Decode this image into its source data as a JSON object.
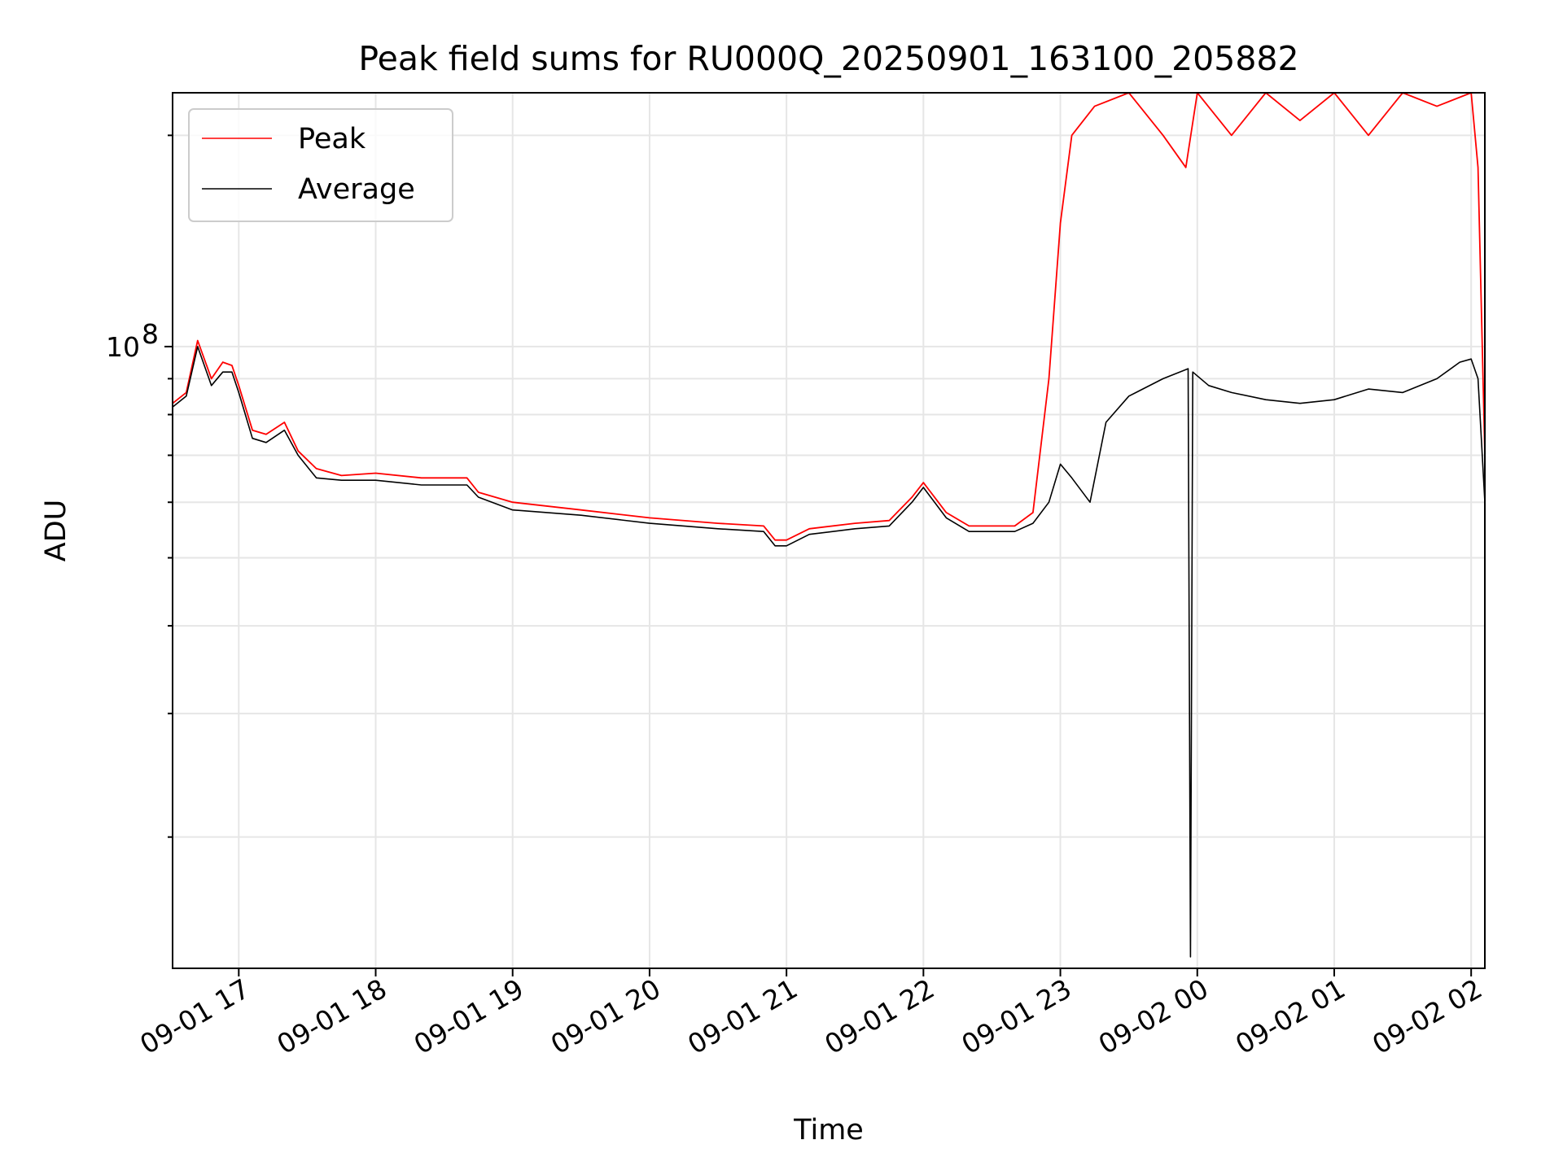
{
  "chart_data": {
    "type": "line",
    "title": "Peak field sums for RU000Q_20250901_163100_205882",
    "xlabel": "Time",
    "ylabel": "ADU",
    "x_range": [
      "2025-09-01 16:31",
      "2025-09-02 02:06"
    ],
    "ylim": [
      13000000,
      230000000
    ],
    "y_scale": "log",
    "grid": true,
    "legend_position": "upper-left",
    "x_ticks": [
      "09-01 17",
      "09-01 18",
      "09-01 19",
      "09-01 20",
      "09-01 21",
      "09-01 22",
      "09-01 23",
      "09-02 00",
      "09-02 01",
      "09-02 02"
    ],
    "y_major_ticks": [
      {
        "value": 100000000,
        "base": "10",
        "exp": "8"
      }
    ],
    "y_minor_ticks": [
      20000000,
      30000000,
      40000000,
      50000000,
      60000000,
      70000000,
      80000000,
      90000000,
      200000000
    ],
    "series": [
      {
        "name": "Peak",
        "color": "#ff0000",
        "x": [
          "09-01 16:31",
          "09-01 16:37",
          "09-01 16:42",
          "09-01 16:48",
          "09-01 16:53",
          "09-01 16:57",
          "09-01 17:00",
          "09-01 17:06",
          "09-01 17:12",
          "09-01 17:20",
          "09-01 17:26",
          "09-01 17:34",
          "09-01 17:45",
          "09-01 18:00",
          "09-01 18:20",
          "09-01 18:40",
          "09-01 18:45",
          "09-01 19:00",
          "09-01 19:30",
          "09-01 20:00",
          "09-01 20:30",
          "09-01 20:50",
          "09-01 20:55",
          "09-01 21:00",
          "09-01 21:10",
          "09-01 21:30",
          "09-01 21:45",
          "09-01 21:55",
          "09-01 22:00",
          "09-01 22:10",
          "09-01 22:20",
          "09-01 22:40",
          "09-01 22:48",
          "09-01 22:55",
          "09-01 23:00",
          "09-01 23:05",
          "09-01 23:15",
          "09-01 23:30",
          "09-01 23:45",
          "09-01 23:55",
          "09-02 00:00",
          "09-02 00:15",
          "09-02 00:30",
          "09-02 00:45",
          "09-02 01:00",
          "09-02 01:15",
          "09-02 01:30",
          "09-02 01:45",
          "09-02 02:00",
          "09-02 02:03",
          "09-02 02:06"
        ],
        "values": [
          83000000,
          86000000,
          102000000,
          90000000,
          95000000,
          94000000,
          88000000,
          76000000,
          75000000,
          78000000,
          71000000,
          67000000,
          65500000,
          66000000,
          65000000,
          65000000,
          62000000,
          60000000,
          58500000,
          57000000,
          56000000,
          55500000,
          53000000,
          53000000,
          55000000,
          56000000,
          56500000,
          61000000,
          64000000,
          58000000,
          55500000,
          55500000,
          58000000,
          90000000,
          150000000,
          200000000,
          220000000,
          230000000,
          200000000,
          180000000,
          230000000,
          200000000,
          230000000,
          210000000,
          230000000,
          200000000,
          230000000,
          220000000,
          230000000,
          180000000,
          70000000
        ]
      },
      {
        "name": "Average",
        "color": "#000000",
        "x": [
          "09-01 16:31",
          "09-01 16:37",
          "09-01 16:42",
          "09-01 16:48",
          "09-01 16:53",
          "09-01 16:57",
          "09-01 17:00",
          "09-01 17:06",
          "09-01 17:12",
          "09-01 17:20",
          "09-01 17:26",
          "09-01 17:34",
          "09-01 17:45",
          "09-01 18:00",
          "09-01 18:20",
          "09-01 18:40",
          "09-01 18:45",
          "09-01 19:00",
          "09-01 19:30",
          "09-01 20:00",
          "09-01 20:30",
          "09-01 20:50",
          "09-01 20:55",
          "09-01 21:00",
          "09-01 21:10",
          "09-01 21:30",
          "09-01 21:45",
          "09-01 21:55",
          "09-01 22:00",
          "09-01 22:10",
          "09-01 22:20",
          "09-01 22:40",
          "09-01 22:48",
          "09-01 22:55",
          "09-01 23:00",
          "09-01 23:05",
          "09-01 23:13",
          "09-01 23:20",
          "09-01 23:30",
          "09-01 23:45",
          "09-01 23:56",
          "09-01 23:57",
          "09-01 23:58",
          "09-02 00:05",
          "09-02 00:15",
          "09-02 00:30",
          "09-02 00:45",
          "09-02 01:00",
          "09-02 01:15",
          "09-02 01:30",
          "09-02 01:45",
          "09-02 01:55",
          "09-02 02:00",
          "09-02 02:03",
          "09-02 02:06"
        ],
        "values": [
          82000000,
          85000000,
          100000000,
          88000000,
          92000000,
          92000000,
          86000000,
          74000000,
          73000000,
          76000000,
          70000000,
          65000000,
          64500000,
          64500000,
          63500000,
          63500000,
          61000000,
          58500000,
          57500000,
          56000000,
          55000000,
          54500000,
          52000000,
          52000000,
          54000000,
          55000000,
          55500000,
          60000000,
          63000000,
          57000000,
          54500000,
          54500000,
          56000000,
          60000000,
          68000000,
          65000000,
          60000000,
          78000000,
          85000000,
          90000000,
          93000000,
          13500000,
          92000000,
          88000000,
          86000000,
          84000000,
          83000000,
          84000000,
          87000000,
          86000000,
          90000000,
          95000000,
          96000000,
          90000000,
          60000000
        ]
      }
    ]
  }
}
